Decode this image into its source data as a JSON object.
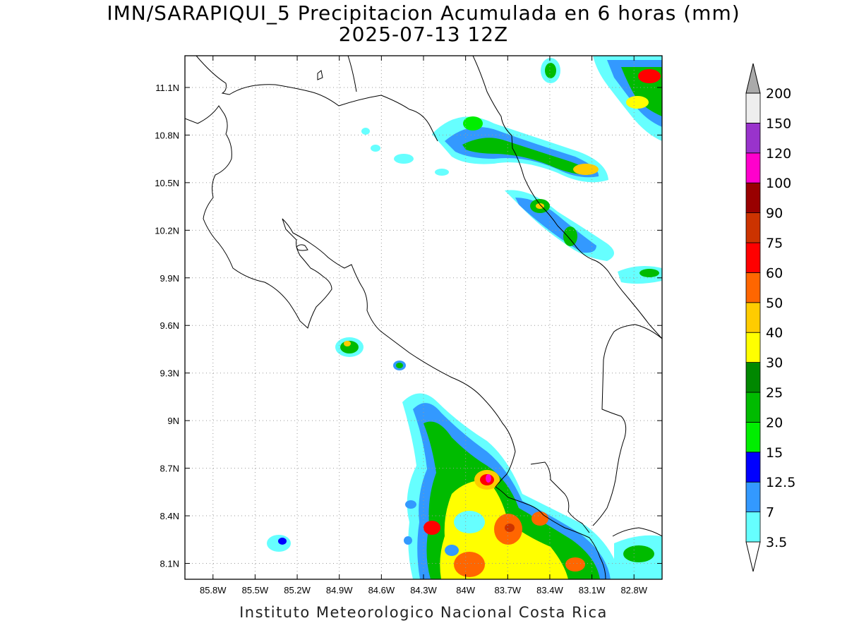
{
  "title": {
    "line1": "IMN/SARAPIQUI_5 Precipitacion Acumulada en 6 horas (mm)",
    "line2": "2025-07-13 12Z"
  },
  "footer": "Instituto Meteorologico Nacional Costa Rica",
  "map": {
    "lon_range": [
      -86.0,
      -82.6
    ],
    "lat_range": [
      8.0,
      11.3
    ],
    "x_ticks": [
      "85.8W",
      "85.5W",
      "85.2W",
      "84.9W",
      "84.6W",
      "84.3W",
      "84W",
      "83.7W",
      "83.4W",
      "83.1W",
      "82.8W"
    ],
    "y_ticks": [
      "8.1N",
      "8.4N",
      "8.7N",
      "9N",
      "9.3N",
      "9.6N",
      "9.9N",
      "10.2N",
      "10.5N",
      "10.8N",
      "11.1N"
    ],
    "grid": "dotted"
  },
  "colorbar": {
    "levels": [
      "3.5",
      "7",
      "12.5",
      "15",
      "20",
      "25",
      "30",
      "40",
      "50",
      "60",
      "75",
      "90",
      "100",
      "120",
      "150",
      "200"
    ],
    "colors": [
      "#66ffff",
      "#3399ff",
      "#0000ff",
      "#00ee00",
      "#00bb00",
      "#008800",
      "#ffff00",
      "#ffcc00",
      "#ff6600",
      "#ff0000",
      "#cc3300",
      "#990000",
      "#ff00cc",
      "#9933cc",
      "#eeeeee",
      "#aaaaaa"
    ]
  }
}
